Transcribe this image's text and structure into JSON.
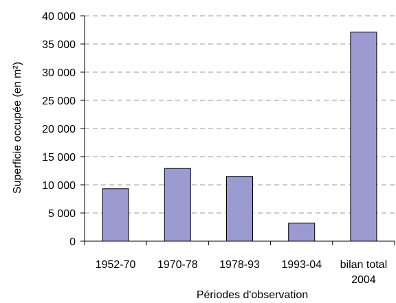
{
  "chart_data": {
    "type": "bar",
    "categories": [
      "1952-70",
      "1970-78",
      "1978-93",
      "1993-04",
      "bilan total\n2004"
    ],
    "values": [
      9300,
      12900,
      11500,
      3200,
      37100
    ],
    "title": "",
    "xlabel": "Périodes d'observation",
    "ylabel": "Superficie occupée (en m²)",
    "ylim": [
      0,
      40000
    ],
    "yticks": [
      0,
      5000,
      10000,
      15000,
      20000,
      25000,
      30000,
      35000,
      40000
    ],
    "ytick_labels": [
      "0",
      "5 000",
      "10 000",
      "15 000",
      "20 000",
      "25 000",
      "30 000",
      "35 000",
      "40 000"
    ],
    "grid": "horizontal dashed",
    "legend": "none",
    "colors": {
      "bar_fill": "#9b9bd1",
      "bar_stroke": "#000000",
      "grid": "#9a9a9a",
      "axis": "#000000"
    }
  }
}
